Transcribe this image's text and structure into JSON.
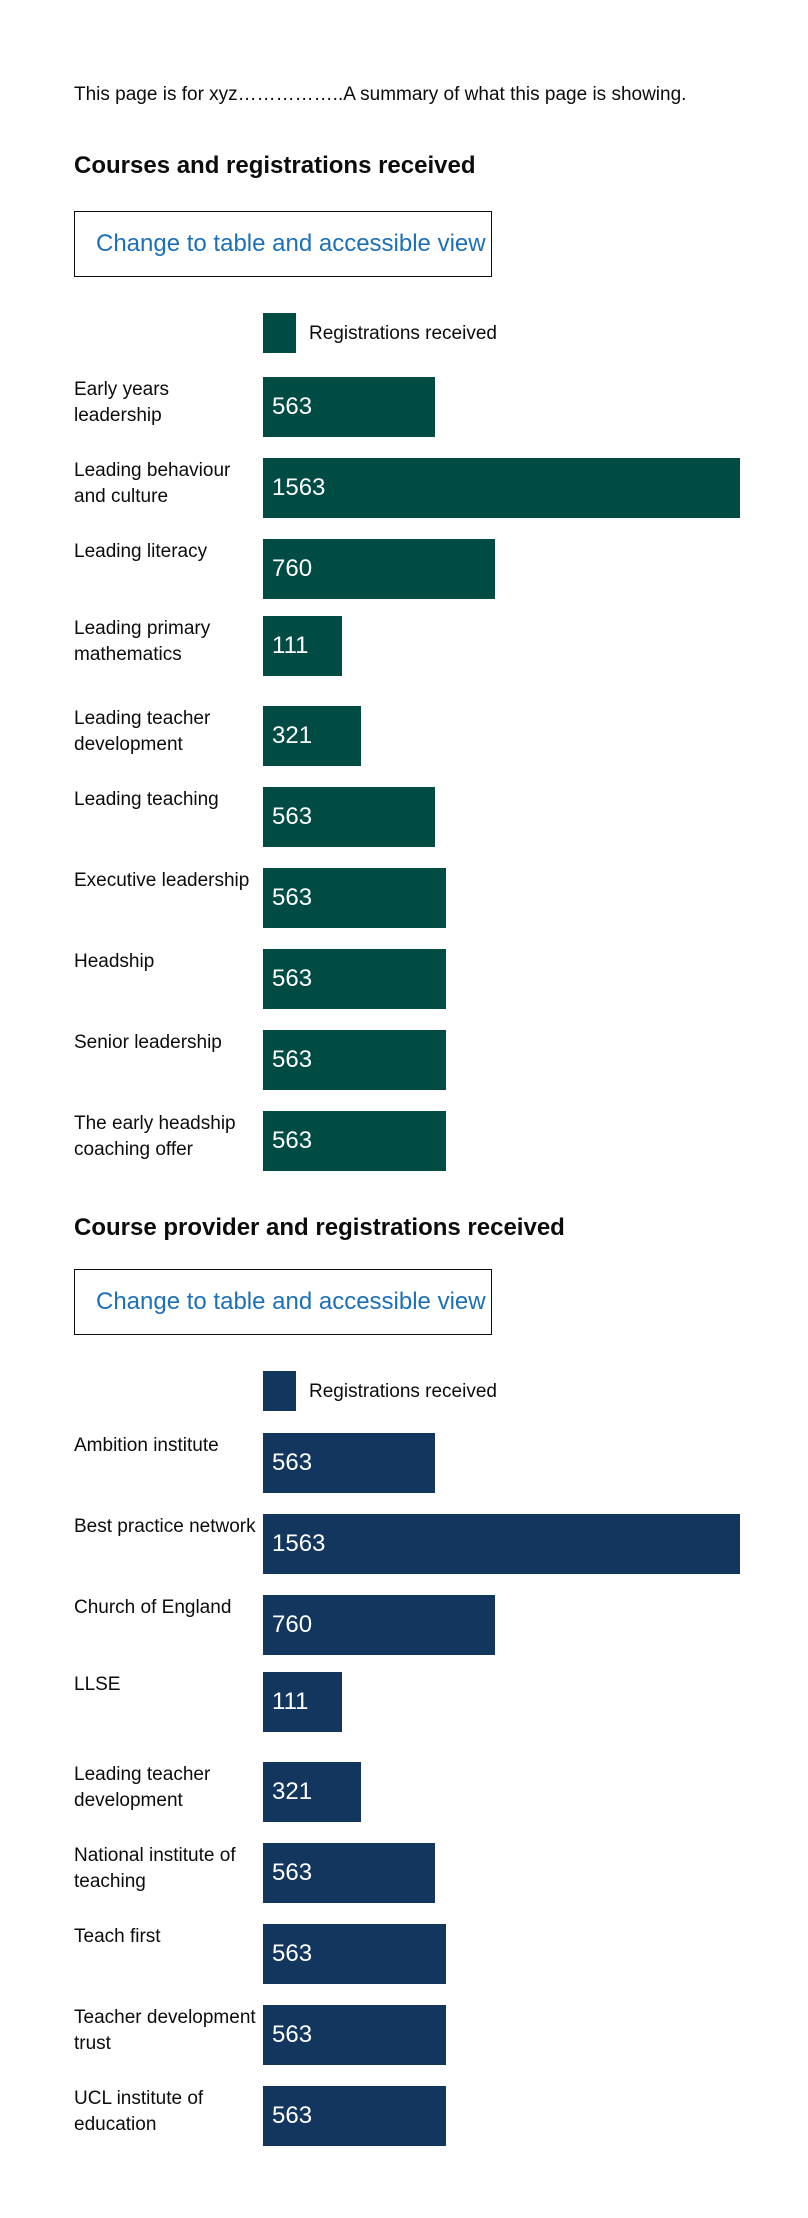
{
  "intro_text": "This page is for xyz……………..A summary of what this page is showing.",
  "sections": [
    {
      "title": "Courses and registrations received",
      "toggle_label": "Change to table and accessible view",
      "legend_label": "Registrations received",
      "color": "#004c45"
    },
    {
      "title": "Course provider and registrations received",
      "toggle_label": "Change to table and accessible view",
      "legend_label": "Registrations received",
      "color": "#12365e"
    }
  ],
  "chart_data": [
    {
      "type": "bar",
      "orientation": "horizontal",
      "title": "Courses and registrations received",
      "categories": [
        "Early years leadership",
        "Leading behaviour and culture",
        "Leading literacy",
        "Leading primary mathematics",
        "Leading teacher development",
        "Leading teaching",
        "Executive leadership",
        "Headship",
        "Senior leadership",
        "The early headship coaching offer"
      ],
      "series": [
        {
          "name": "Registrations received",
          "values": [
            563,
            1563,
            760,
            111,
            321,
            563,
            563,
            563,
            563,
            563
          ]
        }
      ],
      "color": "#004c45",
      "data_labels": true
    },
    {
      "type": "bar",
      "orientation": "horizontal",
      "title": "Course provider and registrations received",
      "categories": [
        "Ambition institute",
        "Best practice network",
        "Church of England",
        "LLSE",
        "Leading teacher development",
        "National institute of teaching",
        "Teach first",
        "Teacher development trust",
        "UCL institute of education"
      ],
      "series": [
        {
          "name": "Registrations received",
          "values": [
            563,
            1563,
            760,
            111,
            321,
            563,
            563,
            563,
            563
          ]
        }
      ],
      "color": "#12365e",
      "data_labels": true
    }
  ]
}
